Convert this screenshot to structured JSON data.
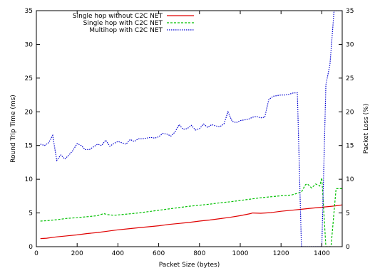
{
  "chart_data": {
    "type": "line",
    "title": "",
    "xlabel": "Packet Size (bytes)",
    "ylabel": "Round Trip Time (ms)",
    "y2label": "Packet Loss (%)",
    "xlim": [
      0,
      1500
    ],
    "ylim": [
      0,
      35
    ],
    "y2lim": [
      0,
      35
    ],
    "xticks": [
      0,
      200,
      400,
      600,
      800,
      1000,
      1200,
      1400
    ],
    "yticks": [
      0,
      5,
      10,
      15,
      20,
      25,
      30,
      35
    ],
    "y2ticks": [
      0,
      5,
      10,
      15,
      20,
      25,
      30,
      35
    ],
    "grid": false,
    "legend_position": "top-left",
    "series": [
      {
        "name": "Single hop without C2C NET",
        "color": "#e00000",
        "style": "solid",
        "x": [
          20,
          50,
          100,
          150,
          200,
          250,
          300,
          350,
          400,
          450,
          500,
          550,
          600,
          650,
          700,
          750,
          800,
          850,
          900,
          950,
          1000,
          1050,
          1060,
          1100,
          1150,
          1200,
          1250,
          1300,
          1350,
          1400,
          1450,
          1480,
          1500
        ],
        "y": [
          1.2,
          1.25,
          1.45,
          1.6,
          1.75,
          1.95,
          2.1,
          2.3,
          2.5,
          2.65,
          2.8,
          2.95,
          3.1,
          3.3,
          3.45,
          3.6,
          3.8,
          3.95,
          4.15,
          4.35,
          4.6,
          4.9,
          5.0,
          4.95,
          5.05,
          5.25,
          5.4,
          5.55,
          5.7,
          5.85,
          6.0,
          6.1,
          6.2
        ]
      },
      {
        "name": "Single hop with C2C NET",
        "color": "#00c000",
        "style": "dashed",
        "x": [
          20,
          50,
          100,
          150,
          200,
          250,
          300,
          330,
          350,
          380,
          400,
          450,
          500,
          550,
          600,
          650,
          700,
          750,
          800,
          850,
          900,
          950,
          1000,
          1050,
          1100,
          1150,
          1200,
          1250,
          1300,
          1320,
          1330,
          1350,
          1370,
          1390,
          1400,
          1420,
          1445,
          1470,
          1500
        ],
        "y": [
          3.8,
          3.85,
          4.0,
          4.2,
          4.3,
          4.45,
          4.6,
          4.9,
          4.75,
          4.65,
          4.7,
          4.85,
          5.0,
          5.2,
          5.4,
          5.6,
          5.8,
          6.0,
          6.15,
          6.3,
          6.5,
          6.65,
          6.85,
          7.05,
          7.25,
          7.4,
          7.55,
          7.65,
          8.1,
          9.2,
          9.3,
          8.7,
          9.3,
          9.0,
          10.2,
          0,
          0,
          8.6,
          8.6
        ]
      },
      {
        "name": "Multihop with C2C NET",
        "color": "#0000d0",
        "style": "dotted",
        "x": [
          20,
          40,
          60,
          80,
          100,
          120,
          140,
          160,
          180,
          200,
          220,
          240,
          260,
          280,
          300,
          320,
          340,
          360,
          380,
          400,
          420,
          440,
          460,
          480,
          500,
          520,
          540,
          560,
          580,
          600,
          620,
          640,
          660,
          680,
          700,
          720,
          740,
          760,
          780,
          800,
          820,
          840,
          860,
          880,
          900,
          920,
          940,
          960,
          980,
          1000,
          1020,
          1040,
          1060,
          1080,
          1100,
          1120,
          1140,
          1160,
          1180,
          1200,
          1220,
          1240,
          1260,
          1280,
          1300,
          1320,
          1340,
          1360,
          1380,
          1400,
          1420,
          1440,
          1460,
          1480,
          1500
        ],
        "y": [
          15.2,
          15.0,
          15.4,
          16.5,
          12.8,
          13.6,
          13.0,
          13.6,
          14.3,
          15.3,
          15.0,
          14.4,
          14.4,
          14.8,
          15.2,
          15.0,
          15.8,
          14.9,
          15.3,
          15.6,
          15.4,
          15.2,
          15.9,
          15.6,
          16.0,
          16.0,
          16.1,
          16.2,
          16.1,
          16.3,
          16.8,
          16.7,
          16.4,
          17.0,
          18.1,
          17.4,
          17.5,
          18.0,
          17.3,
          17.5,
          18.2,
          17.7,
          18.1,
          17.9,
          17.8,
          18.2,
          20.0,
          18.6,
          18.4,
          18.7,
          18.8,
          18.9,
          19.2,
          19.3,
          19.1,
          19.2,
          21.8,
          22.3,
          22.4,
          22.5,
          22.5,
          22.6,
          22.8,
          22.8,
          0,
          0,
          0,
          0,
          0,
          0,
          24.0,
          27.0,
          35,
          35,
          35
        ]
      }
    ]
  }
}
